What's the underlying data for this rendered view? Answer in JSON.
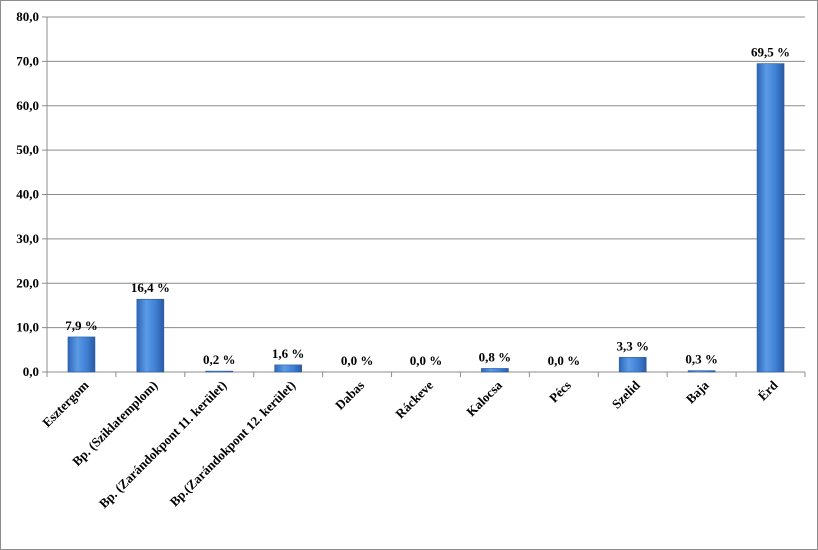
{
  "chart_data": {
    "type": "bar",
    "title": "",
    "xlabel": "",
    "ylabel": "",
    "categories": [
      "Esztergom",
      "Bp. (Sziklatemplom)",
      "Bp. (Zarándokpont 11. kerület)",
      "Bp.(Zarándokpont 12. kerület)",
      "Dabas",
      "Ráckeve",
      "Kalocsa",
      "Pécs",
      "Szelid",
      "Baja",
      "Érd"
    ],
    "values": [
      7.9,
      16.4,
      0.2,
      1.6,
      0.0,
      0.0,
      0.8,
      0.0,
      3.3,
      0.3,
      69.5
    ],
    "data_labels": [
      "7,9 %",
      "16,4 %",
      "0,2 %",
      "1,6 %",
      "0,0 %",
      "0,0 %",
      "0,8 %",
      "0,0 %",
      "3,3 %",
      "0,3 %",
      "69,5 %"
    ],
    "ylim": [
      0,
      80
    ],
    "yticks": [
      0,
      10,
      20,
      30,
      40,
      50,
      60,
      70,
      80
    ],
    "ytick_labels": [
      "0,0",
      "10,0",
      "20,0",
      "30,0",
      "40,0",
      "50,0",
      "60,0",
      "70,0",
      "80,0"
    ],
    "grid": true,
    "legend": "none",
    "bar_color": "#3f7fd4",
    "grid_color": "#8c8c8c"
  }
}
